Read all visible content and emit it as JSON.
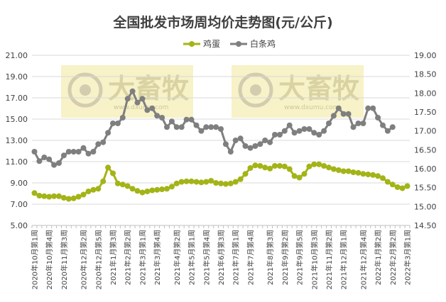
{
  "chart_data": {
    "type": "line",
    "title": "全国批发市场周均价走势图(元/公斤)",
    "legend_position": "top",
    "grid": true,
    "watermark": {
      "text": "大畜牧",
      "sub": "www.dxumu.com"
    },
    "y_left": {
      "min": 5.0,
      "max": 21.0,
      "step": 2.0,
      "ticks": [
        "5.00",
        "7.00",
        "9.00",
        "11.00",
        "13.00",
        "15.00",
        "17.00",
        "19.00",
        "21.00"
      ]
    },
    "y_right": {
      "min": 14.5,
      "max": 19.0,
      "step": 0.5,
      "ticks": [
        "14.50",
        "15.00",
        "15.50",
        "16.00",
        "16.50",
        "17.00",
        "17.50",
        "18.00",
        "18.50",
        "19.00"
      ]
    },
    "x_tick_labels": [
      "2020年10月第1周",
      "2020年10月第4周",
      "2020年11月第3周",
      "2020年12月第2周",
      "2020年12月第5周",
      "2021年1月第3周",
      "2021年2月第2周",
      "2021年3月第1周",
      "2021年3月第4周",
      "2021年4月第2周",
      "2021年5月第1周",
      "2021年5月第4周",
      "2021年6月第3周",
      "2021年7月第1周",
      "2021年7月第4周",
      "2021年8月第3周",
      "2021年9月第2周",
      "2021年9月第5周",
      "2021年10月第3周",
      "2021年11月第2周",
      "2021年12月第1周",
      "2021年12月第4周",
      "2022年1月第2周",
      "2022年2月第2周",
      "2022年3月第1周"
    ],
    "series": [
      {
        "name": "鸡蛋",
        "axis": "left",
        "color": "#a3b417",
        "values": [
          8.05,
          7.8,
          7.75,
          7.7,
          7.75,
          7.75,
          7.6,
          7.5,
          7.55,
          7.7,
          7.9,
          8.2,
          8.35,
          8.45,
          9.15,
          10.45,
          9.9,
          8.95,
          8.85,
          8.7,
          8.45,
          8.25,
          8.1,
          8.2,
          8.3,
          8.35,
          8.4,
          8.45,
          8.65,
          8.95,
          9.1,
          9.15,
          9.15,
          9.1,
          9.05,
          9.1,
          9.2,
          9.0,
          8.95,
          8.9,
          8.95,
          9.1,
          9.35,
          9.85,
          10.4,
          10.65,
          10.6,
          10.45,
          10.35,
          10.6,
          10.6,
          10.55,
          10.3,
          9.65,
          9.5,
          9.85,
          10.55,
          10.75,
          10.75,
          10.6,
          10.45,
          10.3,
          10.2,
          10.1,
          10.1,
          10.0,
          9.95,
          9.85,
          9.8,
          9.75,
          9.65,
          9.45,
          9.1,
          8.85,
          8.6,
          8.5,
          8.7
        ]
      },
      {
        "name": "白条鸡",
        "axis": "right",
        "color": "#7f7f7f",
        "values": [
          16.45,
          16.2,
          16.3,
          16.25,
          16.1,
          16.15,
          16.35,
          16.45,
          16.45,
          16.45,
          16.55,
          16.4,
          16.45,
          16.65,
          16.7,
          16.95,
          17.2,
          17.2,
          17.35,
          17.85,
          18.05,
          17.75,
          17.85,
          17.55,
          17.6,
          17.4,
          17.35,
          17.1,
          17.25,
          17.1,
          17.1,
          17.3,
          17.3,
          17.15,
          17.0,
          17.1,
          17.1,
          17.1,
          17.05,
          16.65,
          16.45,
          16.75,
          16.8,
          16.6,
          16.55,
          16.6,
          16.65,
          16.75,
          16.7,
          16.9,
          16.9,
          17.0,
          17.15,
          16.95,
          17.0,
          17.05,
          17.05,
          16.95,
          16.9,
          17.0,
          17.2,
          17.4,
          17.6,
          17.45,
          17.45,
          17.1,
          17.2,
          17.2,
          17.6,
          17.6,
          17.35,
          17.15,
          17.0,
          17.1
        ]
      }
    ]
  }
}
